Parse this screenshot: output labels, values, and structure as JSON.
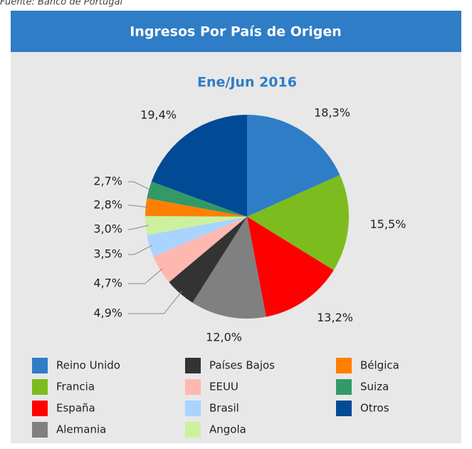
{
  "chart_data": {
    "type": "pie",
    "source": "Fuente: Banco de Portugal",
    "title": "Ingresos Por País de Origen",
    "subtitle": "Ene/Jun 2016",
    "categories": [
      "Reino Unido",
      "Francia",
      "España",
      "Alemania",
      "Países Bajos",
      "EEUU",
      "Brasil",
      "Angola",
      "Bélgica",
      "Suiza",
      "Otros"
    ],
    "values": [
      18.3,
      15.5,
      13.2,
      12.0,
      4.9,
      4.7,
      3.5,
      3.0,
      2.8,
      2.7,
      19.4
    ],
    "value_labels": [
      "18,3%",
      "15,5%",
      "13,2%",
      "12,0%",
      "4,9%",
      "4,7%",
      "3,5%",
      "3,0%",
      "2,8%",
      "2,7%",
      "19,4%"
    ],
    "colors": [
      "#2e7dc6",
      "#7cbc1e",
      "#ff0000",
      "#808080",
      "#333333",
      "#ffb8b0",
      "#a8d4ff",
      "#ccf0a0",
      "#ff8000",
      "#339966",
      "#004a96"
    ]
  }
}
